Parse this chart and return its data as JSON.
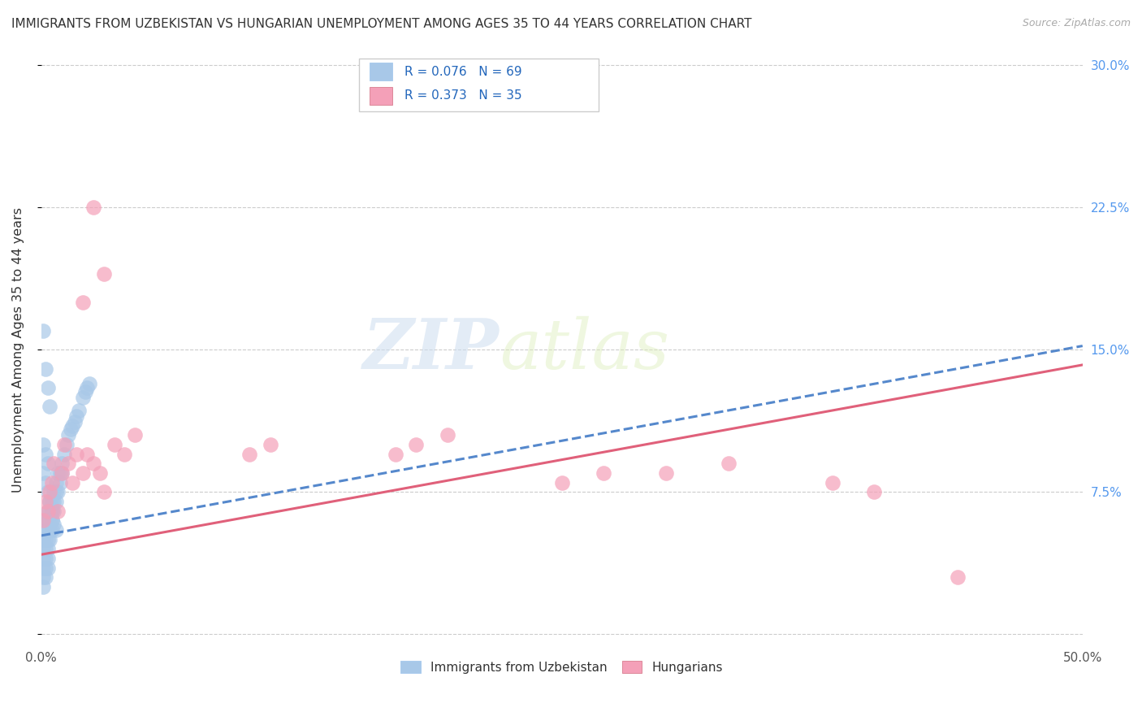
{
  "title": "IMMIGRANTS FROM UZBEKISTAN VS HUNGARIAN UNEMPLOYMENT AMONG AGES 35 TO 44 YEARS CORRELATION CHART",
  "source": "Source: ZipAtlas.com",
  "ylabel": "Unemployment Among Ages 35 to 44 years",
  "xlim": [
    0,
    0.5
  ],
  "ylim": [
    -0.005,
    0.305
  ],
  "xticks": [
    0.0,
    0.1,
    0.2,
    0.3,
    0.4,
    0.5
  ],
  "yticks": [
    0.0,
    0.075,
    0.15,
    0.225,
    0.3
  ],
  "ytick_labels": [
    "",
    "7.5%",
    "15.0%",
    "22.5%",
    "30.0%"
  ],
  "legend_bottom_label1": "Immigrants from Uzbekistan",
  "legend_bottom_label2": "Hungarians",
  "color_blue": "#a8c8e8",
  "color_pink": "#f4a0b8",
  "color_line_blue": "#5588cc",
  "color_line_pink": "#e0607a",
  "color_title": "#333333",
  "color_axis_right": "#5599ee",
  "watermark_zip": "ZIP",
  "watermark_atlas": "atlas",
  "blue_trend_x0": 0.0,
  "blue_trend_y0": 0.052,
  "blue_trend_x1": 0.5,
  "blue_trend_y1": 0.152,
  "pink_trend_x0": 0.0,
  "pink_trend_y0": 0.042,
  "pink_trend_x1": 0.5,
  "pink_trend_y1": 0.142,
  "blue_x": [
    0.001,
    0.001,
    0.001,
    0.001,
    0.001,
    0.001,
    0.002,
    0.002,
    0.002,
    0.002,
    0.002,
    0.002,
    0.002,
    0.003,
    0.003,
    0.003,
    0.003,
    0.003,
    0.003,
    0.003,
    0.004,
    0.004,
    0.004,
    0.004,
    0.004,
    0.005,
    0.005,
    0.005,
    0.005,
    0.006,
    0.006,
    0.006,
    0.007,
    0.007,
    0.007,
    0.008,
    0.008,
    0.009,
    0.009,
    0.01,
    0.01,
    0.011,
    0.012,
    0.013,
    0.014,
    0.015,
    0.016,
    0.017,
    0.018,
    0.02,
    0.021,
    0.022,
    0.023,
    0.001,
    0.002,
    0.003,
    0.004,
    0.001,
    0.002,
    0.003,
    0.001,
    0.002,
    0.003,
    0.004,
    0.005,
    0.005,
    0.006,
    0.007
  ],
  "blue_y": [
    0.05,
    0.045,
    0.04,
    0.035,
    0.03,
    0.025,
    0.06,
    0.055,
    0.05,
    0.045,
    0.04,
    0.035,
    0.03,
    0.065,
    0.06,
    0.055,
    0.05,
    0.045,
    0.04,
    0.035,
    0.07,
    0.065,
    0.06,
    0.055,
    0.05,
    0.07,
    0.065,
    0.06,
    0.055,
    0.075,
    0.07,
    0.065,
    0.08,
    0.075,
    0.07,
    0.085,
    0.075,
    0.085,
    0.08,
    0.09,
    0.085,
    0.095,
    0.1,
    0.105,
    0.108,
    0.11,
    0.112,
    0.115,
    0.118,
    0.125,
    0.128,
    0.13,
    0.132,
    0.16,
    0.14,
    0.13,
    0.12,
    0.1,
    0.095,
    0.09,
    0.085,
    0.08,
    0.075,
    0.07,
    0.065,
    0.06,
    0.058,
    0.055
  ],
  "pink_x": [
    0.001,
    0.002,
    0.003,
    0.004,
    0.005,
    0.006,
    0.008,
    0.01,
    0.011,
    0.013,
    0.015,
    0.017,
    0.02,
    0.022,
    0.025,
    0.028,
    0.03,
    0.035,
    0.04,
    0.045,
    0.02,
    0.025,
    0.03,
    0.1,
    0.11,
    0.17,
    0.18,
    0.195,
    0.25,
    0.27,
    0.3,
    0.33,
    0.38,
    0.4,
    0.44
  ],
  "pink_y": [
    0.06,
    0.07,
    0.065,
    0.075,
    0.08,
    0.09,
    0.065,
    0.085,
    0.1,
    0.09,
    0.08,
    0.095,
    0.085,
    0.095,
    0.09,
    0.085,
    0.075,
    0.1,
    0.095,
    0.105,
    0.175,
    0.225,
    0.19,
    0.095,
    0.1,
    0.095,
    0.1,
    0.105,
    0.08,
    0.085,
    0.085,
    0.09,
    0.08,
    0.075,
    0.03
  ]
}
